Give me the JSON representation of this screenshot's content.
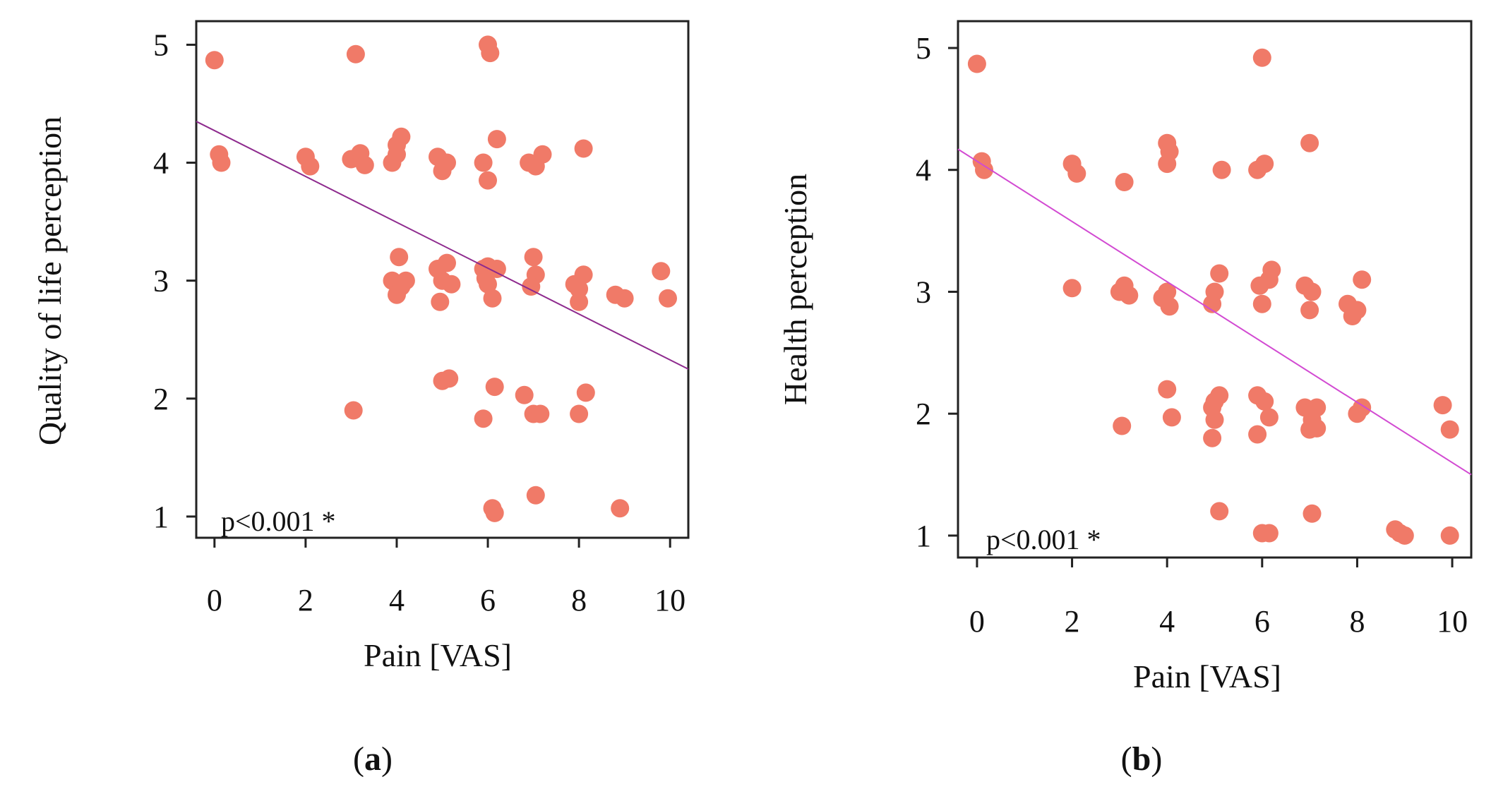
{
  "chart_data": [
    {
      "type": "scatter",
      "panel": "(a)",
      "panel_letter": "a",
      "xlabel": "Pain [VAS]",
      "ylabel": "Quality of life perception",
      "annotation": "p<0.001 *",
      "xlim": [
        -0.4,
        10.4
      ],
      "ylim": [
        0.82,
        5.2
      ],
      "xticks": [
        0,
        2,
        4,
        6,
        8,
        10
      ],
      "yticks": [
        1,
        2,
        3,
        4,
        5
      ],
      "tick_labels_x": [
        "0",
        "2",
        "4",
        "6",
        "8",
        "10"
      ],
      "tick_labels_y": [
        "1",
        "2",
        "3",
        "4",
        "5"
      ],
      "colors": {
        "points": "#f07a68",
        "trend": "#8e2a8e"
      },
      "trend": {
        "x": [
          -0.4,
          10.4
        ],
        "y": [
          4.35,
          2.25
        ]
      },
      "points": [
        [
          0.0,
          4.87
        ],
        [
          0.1,
          4.07
        ],
        [
          0.15,
          4.0
        ],
        [
          2.0,
          4.05
        ],
        [
          2.1,
          3.97
        ],
        [
          3.1,
          4.92
        ],
        [
          3.0,
          4.03
        ],
        [
          3.2,
          4.08
        ],
        [
          3.3,
          3.98
        ],
        [
          3.05,
          1.9
        ],
        [
          3.9,
          4.0
        ],
        [
          4.0,
          4.15
        ],
        [
          4.1,
          4.22
        ],
        [
          4.0,
          4.07
        ],
        [
          4.05,
          3.2
        ],
        [
          3.9,
          3.0
        ],
        [
          4.1,
          2.95
        ],
        [
          4.0,
          2.88
        ],
        [
          4.2,
          3.0
        ],
        [
          4.9,
          4.05
        ],
        [
          5.0,
          3.93
        ],
        [
          5.1,
          4.0
        ],
        [
          4.9,
          3.1
        ],
        [
          5.1,
          3.15
        ],
        [
          5.0,
          3.0
        ],
        [
          5.2,
          2.97
        ],
        [
          4.95,
          2.82
        ],
        [
          5.0,
          2.15
        ],
        [
          5.15,
          2.17
        ],
        [
          5.9,
          4.0
        ],
        [
          6.0,
          3.85
        ],
        [
          6.2,
          4.2
        ],
        [
          6.0,
          5.0
        ],
        [
          6.05,
          4.93
        ],
        [
          5.9,
          3.1
        ],
        [
          6.0,
          3.12
        ],
        [
          6.2,
          3.1
        ],
        [
          6.0,
          2.97
        ],
        [
          6.1,
          2.85
        ],
        [
          5.95,
          3.02
        ],
        [
          6.15,
          2.1
        ],
        [
          5.9,
          1.83
        ],
        [
          6.1,
          1.07
        ],
        [
          6.15,
          1.03
        ],
        [
          6.9,
          4.0
        ],
        [
          7.05,
          3.97
        ],
        [
          7.2,
          4.07
        ],
        [
          7.0,
          3.2
        ],
        [
          7.05,
          3.05
        ],
        [
          6.95,
          2.95
        ],
        [
          6.8,
          2.03
        ],
        [
          7.0,
          1.87
        ],
        [
          7.15,
          1.87
        ],
        [
          7.05,
          1.18
        ],
        [
          7.9,
          2.97
        ],
        [
          8.0,
          2.93
        ],
        [
          8.1,
          3.05
        ],
        [
          8.0,
          2.82
        ],
        [
          8.1,
          4.12
        ],
        [
          8.0,
          1.87
        ],
        [
          8.15,
          2.05
        ],
        [
          8.8,
          2.88
        ],
        [
          9.0,
          2.85
        ],
        [
          8.9,
          1.07
        ],
        [
          9.8,
          3.08
        ],
        [
          9.95,
          2.85
        ]
      ]
    },
    {
      "type": "scatter",
      "panel": "(b)",
      "panel_letter": "b",
      "xlabel": "Pain [VAS]",
      "ylabel": "Health perception",
      "annotation": "p<0.001 *",
      "xlim": [
        -0.4,
        10.4
      ],
      "ylim": [
        0.82,
        5.22
      ],
      "xticks": [
        0,
        2,
        4,
        6,
        8,
        10
      ],
      "yticks": [
        1,
        2,
        3,
        4,
        5
      ],
      "tick_labels_x": [
        "0",
        "2",
        "4",
        "6",
        "8",
        "10"
      ],
      "tick_labels_y": [
        "1",
        "2",
        "3",
        "4",
        "5"
      ],
      "colors": {
        "points": "#f07a68",
        "trend": "#d24ad2"
      },
      "trend": {
        "x": [
          -0.4,
          10.4
        ],
        "y": [
          4.17,
          1.5
        ]
      },
      "points": [
        [
          0.0,
          4.87
        ],
        [
          0.1,
          4.07
        ],
        [
          0.15,
          4.0
        ],
        [
          2.0,
          4.05
        ],
        [
          2.1,
          3.97
        ],
        [
          2.0,
          3.03
        ],
        [
          3.1,
          3.9
        ],
        [
          3.0,
          3.0
        ],
        [
          3.1,
          3.05
        ],
        [
          3.2,
          2.97
        ],
        [
          3.05,
          1.9
        ],
        [
          4.0,
          4.22
        ],
        [
          4.05,
          4.15
        ],
        [
          4.0,
          4.05
        ],
        [
          4.0,
          3.0
        ],
        [
          3.9,
          2.95
        ],
        [
          4.05,
          2.88
        ],
        [
          4.0,
          2.2
        ],
        [
          4.1,
          1.97
        ],
        [
          5.0,
          3.0
        ],
        [
          5.1,
          3.15
        ],
        [
          4.95,
          2.9
        ],
        [
          5.0,
          2.1
        ],
        [
          5.1,
          2.15
        ],
        [
          4.95,
          2.05
        ],
        [
          5.0,
          1.95
        ],
        [
          4.95,
          1.8
        ],
        [
          5.1,
          1.2
        ],
        [
          5.15,
          4.0
        ],
        [
          5.9,
          4.0
        ],
        [
          6.05,
          4.05
        ],
        [
          6.0,
          4.92
        ],
        [
          5.95,
          3.05
        ],
        [
          6.0,
          2.9
        ],
        [
          6.15,
          3.1
        ],
        [
          6.2,
          3.18
        ],
        [
          5.9,
          2.15
        ],
        [
          6.05,
          2.1
        ],
        [
          6.15,
          1.97
        ],
        [
          5.9,
          1.83
        ],
        [
          6.0,
          1.02
        ],
        [
          6.15,
          1.02
        ],
        [
          7.0,
          4.22
        ],
        [
          6.9,
          3.05
        ],
        [
          7.05,
          3.0
        ],
        [
          7.0,
          2.85
        ],
        [
          6.9,
          2.05
        ],
        [
          7.05,
          1.95
        ],
        [
          7.15,
          2.05
        ],
        [
          7.0,
          1.87
        ],
        [
          7.15,
          1.88
        ],
        [
          7.05,
          1.18
        ],
        [
          7.8,
          2.9
        ],
        [
          8.0,
          2.85
        ],
        [
          8.1,
          3.1
        ],
        [
          7.9,
          2.8
        ],
        [
          8.0,
          2.0
        ],
        [
          8.1,
          2.05
        ],
        [
          8.8,
          1.05
        ],
        [
          8.9,
          1.02
        ],
        [
          9.0,
          1.0
        ],
        [
          9.8,
          2.07
        ],
        [
          9.95,
          1.87
        ],
        [
          9.95,
          1.0
        ]
      ]
    }
  ]
}
